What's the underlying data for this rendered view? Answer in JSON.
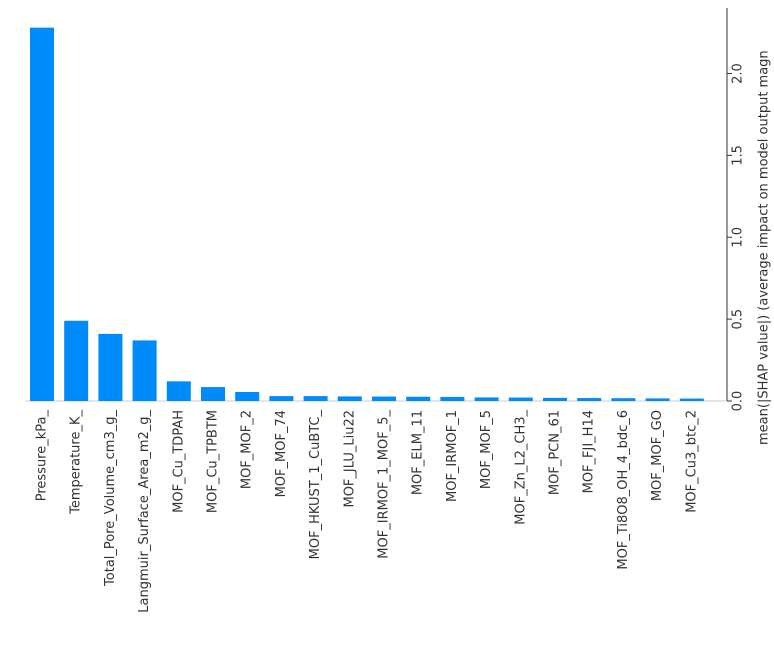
{
  "chart_data": {
    "type": "bar",
    "y_label": "mean(|SHAP value|) (average impact on model output magn",
    "categories": [
      "Pressure_kPa_",
      "Temperature_K_",
      "Total_Pore_Volume_cm3_g_",
      "Langmuir_Surface_Area_m2_g_",
      "MOF_Cu_TDPAH",
      "MOF_Cu_TPBTM",
      "MOF_MOF_2",
      "MOF_MOF_74",
      "MOF_HKUST_1_CuBTC_",
      "MOF_JLU_Liu22",
      "MOF_IRMOF_1_MOF_5_",
      "MOF_ELM_11",
      "MOF_IRMOF_1",
      "MOF_MOF_5",
      "MOF_Zn_L2_CH3_",
      "MOF_PCN_61",
      "MOF_FJI_H14",
      "MOF_Ti8O8_OH_4_bdc_6",
      "MOF_MOF_GO",
      "MOF_Cu3_btc_2"
    ],
    "values": [
      2.28,
      0.49,
      0.41,
      0.37,
      0.12,
      0.085,
      0.055,
      0.03,
      0.03,
      0.028,
      0.027,
      0.026,
      0.025,
      0.022,
      0.021,
      0.019,
      0.018,
      0.017,
      0.016,
      0.015
    ],
    "color": "#008bfb",
    "ylim": [
      0,
      2.4
    ],
    "yticks": [
      {
        "value": 0,
        "label": "0.0"
      },
      {
        "value": 0.5,
        "label": "0.5"
      },
      {
        "value": 1,
        "label": "1.0"
      },
      {
        "value": 1.5,
        "label": "1.5"
      },
      {
        "value": 2,
        "label": "2.0"
      }
    ]
  }
}
